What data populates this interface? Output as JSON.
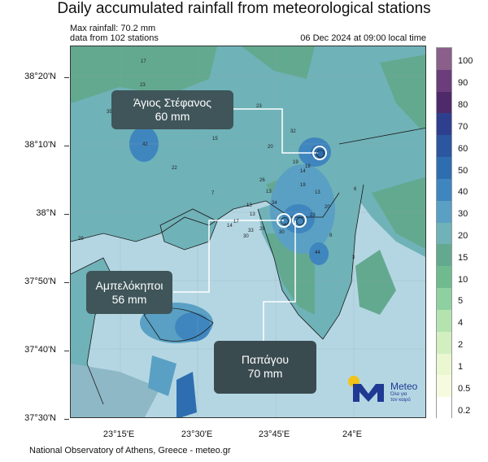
{
  "title": "Daily accumulated rainfall from meteorological stations",
  "max_rainfall": "Max rainfall: 70.2 mm",
  "stations_count": "data from 102 stations",
  "date": "06 Dec 2024 at 09:00 local time",
  "lat_labels": [
    "38°20'N",
    "38°10'N",
    "38°N",
    "37°50'N",
    "37°40'N",
    "37°30'N"
  ],
  "lon_labels": [
    "23°15'E",
    "23°30'E",
    "23°45'E",
    "24°E"
  ],
  "callouts": [
    {
      "name": "Άγιος Στέφανος",
      "value": "60 mm"
    },
    {
      "name": "Αμπελόκηποι",
      "value": "56 mm"
    },
    {
      "name": "Παπάγου",
      "value": "70 mm"
    }
  ],
  "legend": {
    "labels": [
      "100",
      "90",
      "80",
      "70",
      "60",
      "50",
      "40",
      "30",
      "20",
      "15",
      "10",
      "5",
      "4",
      "2",
      "1",
      "0.5",
      "0.2"
    ],
    "colors": [
      "#8a5f8a",
      "#6b3d7a",
      "#4e2a6b",
      "#2e3f8f",
      "#2a57a0",
      "#2e6eb0",
      "#3f86bf",
      "#5aa0c4",
      "#6fb2b8",
      "#63a98f",
      "#6fbb8f",
      "#8fd0a0",
      "#b4e3b0",
      "#d3efc0",
      "#eaf7d0",
      "#f6fbe0",
      "#ffffff"
    ]
  },
  "station_values": [
    "17",
    "23",
    "35",
    "23",
    "42",
    "15",
    "22",
    "23",
    "32",
    "20",
    "19",
    "14",
    "18",
    "13",
    "26",
    "19",
    "13",
    "7",
    "13",
    "34",
    "20",
    "29",
    "6",
    "44",
    "31",
    "23",
    "17",
    "14",
    "33",
    "29",
    "8",
    "30",
    "30",
    "13",
    "3"
  ],
  "logo": {
    "name": "Meteo",
    "tagline_1": "Όλα για",
    "tagline_2": "τον καιρό"
  },
  "footer": "National Observatory of Athens, Greece - meteo.gr"
}
